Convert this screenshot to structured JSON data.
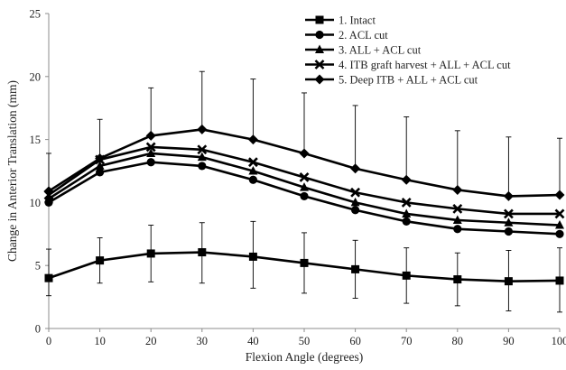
{
  "chart_data": {
    "type": "line",
    "title": "",
    "xlabel": "Flexion Angle (degrees)",
    "ylabel": "Change in Anterior Translation (mm)",
    "x": [
      0,
      10,
      20,
      30,
      40,
      50,
      60,
      70,
      80,
      90,
      100
    ],
    "xticks": [
      "0",
      "10",
      "20",
      "30",
      "40",
      "50",
      "60",
      "70",
      "80",
      "90",
      "100"
    ],
    "yticks": [
      "0",
      "5",
      "10",
      "15",
      "20",
      "25"
    ],
    "xlim": [
      0,
      100
    ],
    "ylim": [
      0,
      25
    ],
    "grid": false,
    "legend_position": "top-right",
    "series": [
      {
        "name": "1. Intact",
        "marker": "square",
        "values": [
          4.0,
          5.4,
          5.95,
          6.05,
          5.7,
          5.2,
          4.7,
          4.2,
          3.9,
          3.75,
          3.8
        ],
        "error_upper": [
          6.3,
          7.2,
          8.2,
          8.4,
          8.5,
          7.6,
          7.0,
          6.4,
          6.0,
          6.2,
          6.4
        ],
        "error_lower": [
          2.6,
          3.6,
          3.7,
          3.6,
          3.2,
          2.8,
          2.4,
          2.0,
          1.8,
          1.4,
          1.3
        ]
      },
      {
        "name": "2. ACL cut",
        "marker": "circle",
        "values": [
          10.0,
          12.4,
          13.2,
          12.9,
          11.8,
          10.5,
          9.4,
          8.5,
          7.9,
          7.7,
          7.5
        ]
      },
      {
        "name": "3. ALL + ACL cut",
        "marker": "triangle",
        "values": [
          10.3,
          12.9,
          13.9,
          13.6,
          12.5,
          11.2,
          10.0,
          9.1,
          8.6,
          8.4,
          8.2
        ]
      },
      {
        "name": "4. ITB graft harvest + ALL + ACL cut",
        "marker": "x",
        "values": [
          10.6,
          13.4,
          14.4,
          14.2,
          13.2,
          12.0,
          10.8,
          10.0,
          9.5,
          9.1,
          9.1
        ]
      },
      {
        "name": "5. Deep ITB + ALL + ACL cut",
        "marker": "diamond",
        "values": [
          10.9,
          13.5,
          15.3,
          15.8,
          15.0,
          13.9,
          12.7,
          11.8,
          11.0,
          10.5,
          10.6
        ],
        "error_upper": [
          13.9,
          16.6,
          19.1,
          20.4,
          19.8,
          18.7,
          17.7,
          16.8,
          15.7,
          15.2,
          15.1
        ]
      }
    ]
  },
  "colors": {
    "series": "#000000",
    "axis": "#8c8c8c",
    "text": "#222222"
  }
}
